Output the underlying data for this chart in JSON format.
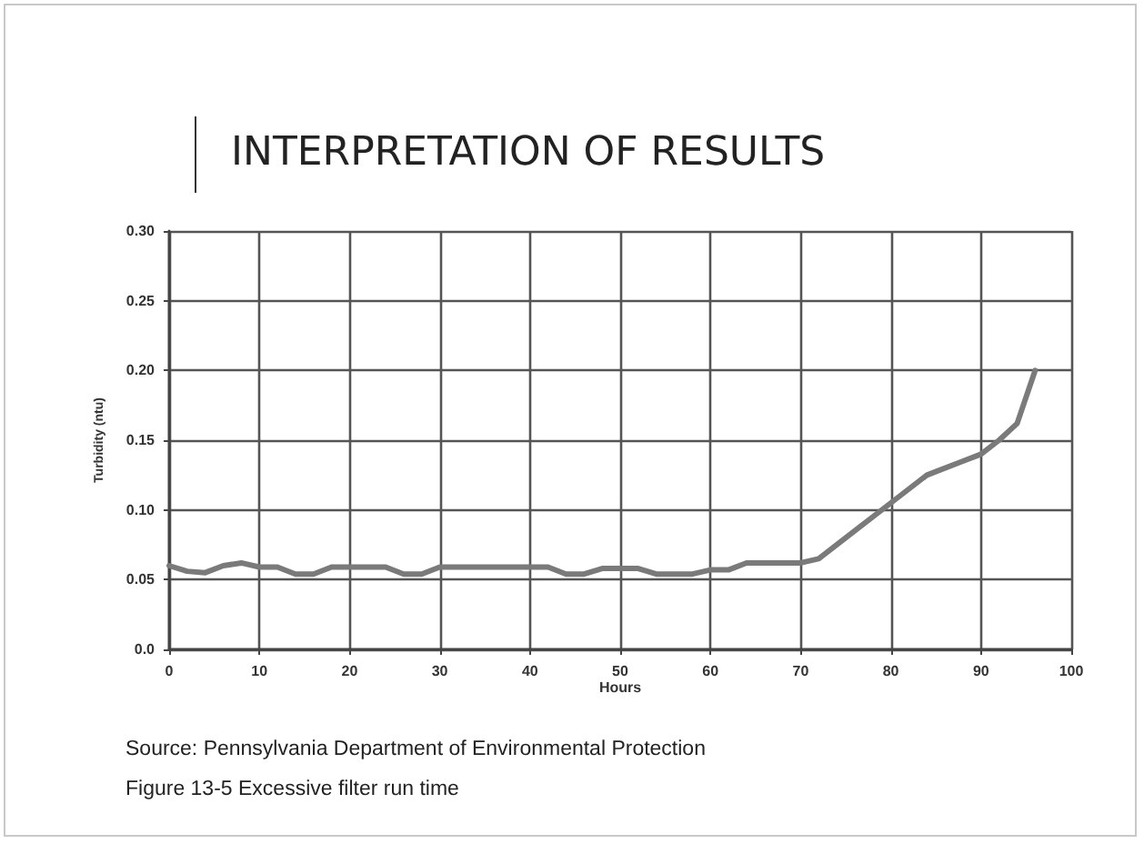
{
  "chart_data": {
    "type": "line",
    "title": "INTERPRETATION OF RESULTS",
    "xlabel": "Hours",
    "ylabel": "Turbidity (ntu)",
    "x": [
      0,
      2,
      4,
      6,
      8,
      10,
      12,
      14,
      16,
      18,
      20,
      22,
      24,
      26,
      28,
      30,
      32,
      34,
      36,
      38,
      40,
      42,
      44,
      46,
      48,
      50,
      52,
      54,
      56,
      58,
      60,
      62,
      64,
      66,
      68,
      70,
      72,
      76,
      80,
      84,
      88,
      90,
      92,
      94,
      96
    ],
    "series": [
      {
        "color": "#7a7a7a",
        "values": [
          0.06,
          0.056,
          0.055,
          0.06,
          0.062,
          0.059,
          0.059,
          0.054,
          0.054,
          0.059,
          0.059,
          0.059,
          0.059,
          0.054,
          0.054,
          0.059,
          0.059,
          0.059,
          0.059,
          0.059,
          0.059,
          0.059,
          0.054,
          0.054,
          0.058,
          0.058,
          0.058,
          0.054,
          0.054,
          0.054,
          0.057,
          0.057,
          0.062,
          0.062,
          0.062,
          0.062,
          0.065,
          0.085,
          0.105,
          0.125,
          0.135,
          0.14,
          0.15,
          0.162,
          0.2
        ]
      }
    ],
    "xlim": [
      0,
      100
    ],
    "xticks": [
      0,
      10,
      20,
      30,
      40,
      50,
      60,
      70,
      80,
      90,
      100
    ],
    "ylim": [
      0,
      0.3
    ],
    "yticks": [
      {
        "value": 0,
        "label": "0.0"
      },
      0.05,
      {
        "value": 0.1,
        "label": "0.10"
      },
      0.15,
      {
        "value": 0.2,
        "label": "0.20"
      },
      0.25,
      {
        "value": 0.3,
        "label": "0.30"
      }
    ],
    "grid": true,
    "marker": "none",
    "line_style": "solid",
    "annotations": [
      "Source: Pennsylvania Department of Environmental Protection",
      "Figure 13-5 Excessive filter run time"
    ]
  }
}
